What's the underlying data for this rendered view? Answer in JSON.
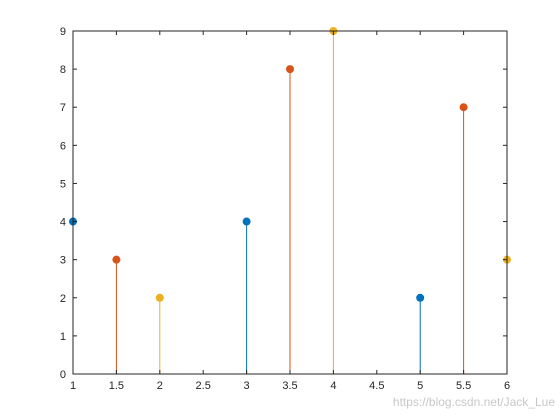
{
  "chart_data": {
    "type": "stem",
    "title": "",
    "xlabel": "",
    "ylabel": "",
    "xlim": [
      1,
      6
    ],
    "ylim": [
      0,
      9
    ],
    "grid": false,
    "xticks": [
      "1",
      "1.5",
      "2",
      "2.5",
      "3",
      "3.5",
      "4",
      "4.5",
      "5",
      "5.5",
      "6"
    ],
    "yticks": [
      "0",
      "1",
      "2",
      "3",
      "4",
      "5",
      "6",
      "7",
      "8",
      "9"
    ],
    "series": [
      {
        "color": "#0072BD",
        "x": [
          1,
          3,
          5
        ],
        "y": [
          4,
          4,
          2
        ]
      },
      {
        "color": "#D95319",
        "x": [
          1.5,
          3.5,
          5.5
        ],
        "y": [
          3,
          8,
          7
        ]
      },
      {
        "color": "#EDB120",
        "x": [
          2,
          4,
          6
        ],
        "y": [
          2,
          9,
          3
        ]
      }
    ]
  },
  "watermark": "https://blog.csdn.net/Jack_Lue"
}
